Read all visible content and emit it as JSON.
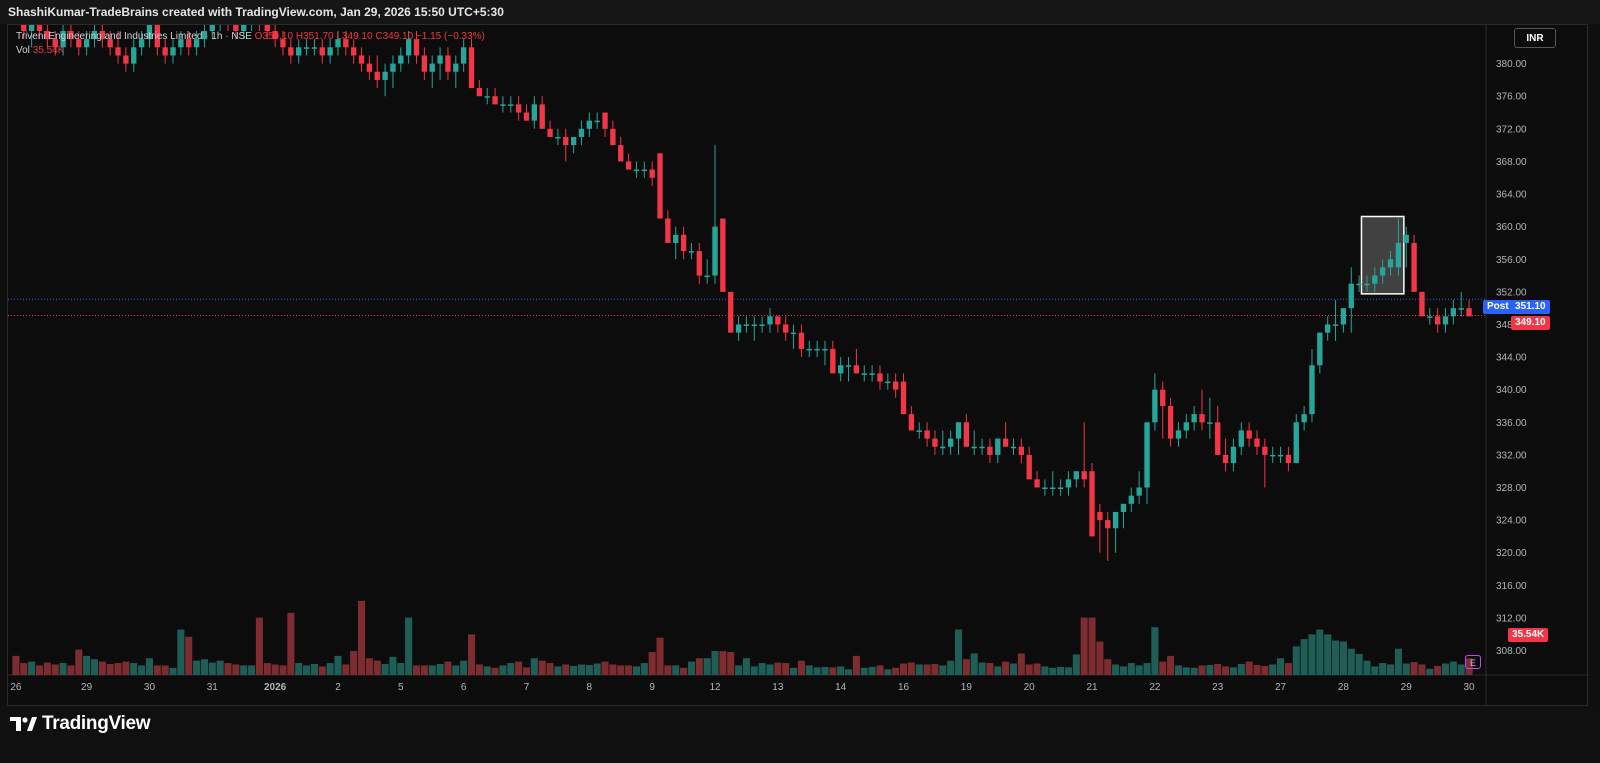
{
  "header": {
    "attribution": "ShashiKumar-TradeBrains created with TradingView.com, Jan 29, 2026 15:50 UTC+5:30"
  },
  "legend": {
    "symbol": "Triveni Engineering and Industries Limited",
    "interval": "1h",
    "exchange": "NSE",
    "open": "O350.10",
    "high": "H351.70",
    "low": "L349.10",
    "close": "C349.10",
    "change": "−1.15 (−0.33%)",
    "vol_label": "Vol",
    "vol_value": "35.54K"
  },
  "currency": "INR",
  "price_labels": {
    "post_tag": "Post",
    "post_price": "351.10",
    "last_price": "349.10",
    "volume": "35.54K"
  },
  "event_badge": "E",
  "branding": "TradingView",
  "colors": {
    "up": "#26a69a",
    "down": "#f23645",
    "up_volume": "#1f5e57",
    "down_volume": "#7d2d2f",
    "post_line": "#2962ff",
    "last_line": "#f23645",
    "highlight_box": "#ffffff"
  },
  "chart_data": {
    "type": "candlestick",
    "ylim": [
      305,
      384
    ],
    "y_ticks": [
      308,
      312,
      316,
      320,
      324,
      328,
      332,
      336,
      340,
      344,
      348,
      352,
      356,
      360,
      364,
      368,
      372,
      376,
      380
    ],
    "y_tick_labels": [
      "308.00",
      "312.00",
      "316.00",
      "320.00",
      "324.00",
      "328.00",
      "332.00",
      "336.00",
      "340.00",
      "344.00",
      "348.00",
      "352.00",
      "356.00",
      "360.00",
      "364.00",
      "368.00",
      "372.00",
      "376.00",
      "380.00"
    ],
    "x_labels": [
      "26",
      "29",
      "30",
      "31",
      "2026",
      "2",
      "5",
      "6",
      "7",
      "8",
      "9",
      "12",
      "13",
      "14",
      "16",
      "19",
      "20",
      "21",
      "22",
      "23",
      "27",
      "28",
      "29",
      "30"
    ],
    "x_label_bar_index": [
      0,
      9,
      17,
      25,
      33,
      41,
      49,
      57,
      65,
      73,
      81,
      89,
      97,
      105,
      113,
      121,
      129,
      137,
      145,
      153,
      161,
      169,
      177,
      185
    ],
    "post_price": 351.1,
    "last_price": 349.1,
    "volume_max": 35.54,
    "highlight_bars": [
      172,
      176
    ],
    "candles": [
      [
        388,
        389,
        385,
        386,
        4
      ],
      [
        386,
        387,
        383,
        384,
        2.5
      ],
      [
        384,
        386,
        382,
        385,
        2.8
      ],
      [
        385,
        386,
        383,
        384,
        2
      ],
      [
        384,
        386,
        382,
        383,
        2.6
      ],
      [
        383,
        384,
        381,
        382,
        2.2
      ],
      [
        382,
        385,
        381,
        384,
        2.5
      ],
      [
        384,
        386,
        382,
        383,
        2
      ],
      [
        383,
        384,
        381,
        382,
        5.3
      ],
      [
        382,
        384,
        381,
        383,
        4
      ],
      [
        383,
        385,
        382,
        384,
        3.3
      ],
      [
        384,
        385,
        382,
        383,
        2.8
      ],
      [
        383,
        384,
        381,
        382,
        2.3
      ],
      [
        382,
        384,
        380,
        381,
        2.5
      ],
      [
        381,
        382,
        379,
        380,
        2.8
      ],
      [
        380,
        383,
        379,
        382,
        2.5
      ],
      [
        382,
        384,
        381,
        383,
        2
      ],
      [
        383,
        386,
        382,
        385,
        3.5
      ],
      [
        385,
        386,
        381,
        382,
        2
      ],
      [
        382,
        383,
        380,
        381,
        2
      ],
      [
        381,
        383,
        380,
        382,
        1.5
      ],
      [
        382,
        384,
        381,
        383,
        9.5
      ],
      [
        383,
        384,
        381,
        382,
        8
      ],
      [
        382,
        384,
        381,
        383,
        3
      ],
      [
        383,
        385,
        382,
        384,
        3.3
      ],
      [
        384,
        386,
        383,
        385,
        2.6
      ],
      [
        385,
        387,
        384,
        386,
        3
      ],
      [
        386,
        388,
        384,
        385,
        2.5
      ],
      [
        385,
        386,
        383,
        384,
        2.2
      ],
      [
        384,
        386,
        383,
        385,
        2
      ],
      [
        385,
        387,
        384,
        386,
        2
      ],
      [
        386,
        388,
        384,
        385,
        12
      ],
      [
        385,
        386,
        383,
        384,
        2.5
      ],
      [
        384,
        385,
        382,
        383,
        2.2
      ],
      [
        383,
        384,
        381,
        382,
        2
      ],
      [
        382,
        383,
        380,
        381,
        13
      ],
      [
        381,
        383,
        380,
        382,
        2.5
      ],
      [
        382,
        383,
        381,
        382,
        2
      ],
      [
        382,
        383,
        381,
        382,
        2.3
      ],
      [
        382,
        383,
        380,
        381,
        1.8
      ],
      [
        381,
        383,
        380,
        382,
        2.5
      ],
      [
        382,
        384,
        381,
        383,
        4
      ],
      [
        383,
        384,
        381,
        382,
        2.2
      ],
      [
        382,
        383,
        380,
        381,
        5
      ],
      [
        381,
        382,
        379,
        380,
        15.5
      ],
      [
        380,
        381,
        378,
        379,
        3.5
      ],
      [
        379,
        381,
        377,
        378,
        3
      ],
      [
        378,
        380,
        376,
        379,
        2.3
      ],
      [
        379,
        381,
        377,
        380,
        3.8
      ],
      [
        380,
        382,
        379,
        381,
        2.5
      ],
      [
        381,
        384,
        380,
        383,
        12
      ],
      [
        383,
        384,
        380,
        381,
        2
      ],
      [
        381,
        382,
        378,
        379,
        2
      ],
      [
        379,
        381,
        377,
        380,
        2
      ],
      [
        380,
        382,
        378,
        381,
        2.3
      ],
      [
        381,
        382,
        378,
        379,
        2.8
      ],
      [
        379,
        381,
        377,
        380,
        2
      ],
      [
        380,
        383,
        379,
        382,
        3
      ],
      [
        382,
        383,
        377,
        377,
        8.5
      ],
      [
        377,
        378,
        376,
        376,
        2.2
      ],
      [
        376,
        377,
        375,
        376,
        1.8
      ],
      [
        376,
        377,
        375,
        375,
        1.5
      ],
      [
        375,
        376,
        374,
        375,
        2
      ],
      [
        375,
        376,
        374,
        375,
        2.5
      ],
      [
        375,
        376,
        373,
        374,
        2.8
      ],
      [
        374,
        375,
        373,
        373,
        1.6
      ],
      [
        373,
        376,
        372,
        375,
        3.5
      ],
      [
        375,
        376,
        372,
        372,
        3
      ],
      [
        372,
        373,
        371,
        371,
        2.5
      ],
      [
        371,
        372,
        370,
        371,
        1.8
      ],
      [
        371,
        372,
        368,
        370,
        2.2
      ],
      [
        370,
        371,
        369,
        371,
        1.9
      ],
      [
        371,
        373,
        370,
        372,
        2.2
      ],
      [
        372,
        374,
        371,
        373,
        2.1
      ],
      [
        373,
        374,
        372,
        373,
        2.4
      ],
      [
        374,
        374,
        371,
        372,
        2.8
      ],
      [
        372,
        373,
        370,
        370,
        2.2
      ],
      [
        370,
        371,
        368,
        368,
        2
      ],
      [
        368,
        369,
        367,
        367,
        2
      ],
      [
        367,
        368,
        366,
        367,
        1.8
      ],
      [
        367,
        368,
        366,
        367,
        2.5
      ],
      [
        367,
        368,
        365,
        366,
        4.8
      ],
      [
        369,
        369,
        361,
        361,
        7.8
      ],
      [
        361,
        362,
        358,
        358,
        2
      ],
      [
        358,
        360,
        356,
        359,
        2
      ],
      [
        359,
        360,
        356,
        357,
        1.5
      ],
      [
        357,
        358,
        356,
        357,
        2.8
      ],
      [
        357,
        358,
        353,
        354,
        3.5
      ],
      [
        354,
        356,
        353,
        354,
        3.5
      ],
      [
        354,
        370,
        353,
        360,
        5
      ],
      [
        361,
        361,
        352,
        352,
        5
      ],
      [
        352,
        352,
        347,
        347,
        4.8
      ],
      [
        347,
        349,
        346,
        348,
        2
      ],
      [
        348,
        349,
        347,
        348,
        3.5
      ],
      [
        348,
        349,
        346,
        348,
        1.8
      ],
      [
        348,
        349,
        347,
        348,
        2.5
      ],
      [
        348,
        350,
        347,
        349,
        2.2
      ],
      [
        349,
        349,
        347,
        348,
        2.6
      ],
      [
        348,
        349,
        346,
        347,
        2.5
      ],
      [
        347,
        348,
        345,
        347,
        1.5
      ],
      [
        347,
        348,
        344,
        345,
        3
      ],
      [
        345,
        346,
        344,
        345,
        2
      ],
      [
        345,
        346,
        344,
        345,
        1.6
      ],
      [
        345,
        346,
        343,
        345,
        1.7
      ],
      [
        345,
        346,
        342,
        342,
        1.6
      ],
      [
        342,
        344,
        341,
        343,
        1.8
      ],
      [
        343,
        344,
        341,
        343,
        1.2
      ],
      [
        343,
        345,
        342,
        342,
        4
      ],
      [
        342,
        343,
        341,
        342,
        1.5
      ],
      [
        342,
        343,
        341,
        342,
        1.7
      ],
      [
        342,
        343,
        340,
        341,
        2
      ],
      [
        341,
        342,
        340,
        341,
        1.2
      ],
      [
        341,
        342,
        339,
        340,
        1.5
      ],
      [
        341,
        342,
        337,
        337,
        2.4
      ],
      [
        337,
        338,
        335,
        335,
        2.6
      ],
      [
        335,
        336,
        334,
        335,
        2.2
      ],
      [
        335,
        336,
        333,
        334,
        2.2
      ],
      [
        334,
        335,
        332,
        333,
        2.3
      ],
      [
        333,
        335,
        332,
        333,
        2
      ],
      [
        333,
        335,
        332,
        334,
        3
      ],
      [
        334,
        336,
        332,
        336,
        9.5
      ],
      [
        336,
        337,
        333,
        333,
        3.3
      ],
      [
        333,
        335,
        332,
        333,
        4.5
      ],
      [
        333,
        334,
        332,
        333,
        2.6
      ],
      [
        333,
        334,
        331,
        332,
        2.5
      ],
      [
        332,
        334,
        331,
        334,
        1.8
      ],
      [
        334,
        336,
        333,
        333,
        2.8
      ],
      [
        333,
        334,
        332,
        333,
        2.4
      ],
      [
        333,
        334,
        331,
        332,
        4.5
      ],
      [
        332,
        333,
        329,
        329,
        2.2
      ],
      [
        329,
        330,
        328,
        328,
        2.4
      ],
      [
        328,
        329,
        327,
        328,
        1.8
      ],
      [
        328,
        330,
        327,
        328,
        1.5
      ],
      [
        328,
        329,
        327,
        328,
        1.7
      ],
      [
        328,
        330,
        327,
        329,
        1.6
      ],
      [
        329,
        330,
        328,
        330,
        4.3
      ],
      [
        330,
        336,
        328,
        329,
        12
      ],
      [
        330,
        331,
        322,
        322,
        12
      ],
      [
        325,
        326,
        320,
        324,
        7
      ],
      [
        324,
        325,
        319,
        323,
        3.3
      ],
      [
        323,
        325,
        320,
        325,
        2.2
      ],
      [
        325,
        326,
        323,
        326,
        1.8
      ],
      [
        326,
        328,
        325,
        327,
        2.5
      ],
      [
        327,
        330,
        326,
        328,
        2
      ],
      [
        328,
        336,
        326,
        336,
        2.5
      ],
      [
        336,
        342,
        335,
        340,
        10
      ],
      [
        340,
        341,
        334,
        338,
        2.8
      ],
      [
        338,
        339,
        333,
        334,
        4
      ],
      [
        334,
        336,
        333,
        335,
        2
      ],
      [
        335,
        337,
        334,
        336,
        1.6
      ],
      [
        336,
        338,
        335,
        337,
        1.5
      ],
      [
        337,
        340,
        335,
        336,
        2
      ],
      [
        336,
        339,
        334,
        336,
        2.1
      ],
      [
        336,
        338,
        332,
        332,
        2.3
      ],
      [
        332,
        334,
        330,
        331,
        1.8
      ],
      [
        331,
        334,
        330,
        333,
        1.6
      ],
      [
        333,
        336,
        332,
        335,
        2.3
      ],
      [
        335,
        336,
        333,
        334,
        2.8
      ],
      [
        334,
        335,
        332,
        333,
        2.1
      ],
      [
        333,
        334,
        328,
        332,
        1.9
      ],
      [
        332,
        333,
        331,
        332,
        2.2
      ],
      [
        332,
        333,
        331,
        332,
        3.5
      ],
      [
        332,
        333,
        330,
        331,
        2.5
      ],
      [
        331,
        337,
        331,
        336,
        6
      ],
      [
        336,
        338,
        335,
        337,
        7.5
      ],
      [
        337,
        345,
        336,
        343,
        8.5
      ],
      [
        343,
        347,
        342,
        347,
        9.5
      ],
      [
        347,
        349,
        346,
        348,
        8.5
      ],
      [
        348,
        351,
        346,
        348,
        7.2
      ],
      [
        348,
        350,
        347,
        350,
        7
      ],
      [
        350,
        355,
        347,
        353,
        5.5
      ],
      [
        353,
        354,
        352,
        353,
        4.4
      ],
      [
        353,
        354,
        352,
        353,
        3
      ],
      [
        353,
        355,
        352,
        354,
        1.8
      ],
      [
        354,
        356,
        353,
        355,
        2.5
      ],
      [
        355,
        357,
        354,
        356,
        2.2
      ],
      [
        355,
        361,
        354,
        358,
        5.5
      ],
      [
        358,
        360,
        355,
        359,
        2.4
      ],
      [
        358,
        359,
        352,
        352,
        2.7
      ],
      [
        352,
        352,
        349,
        349,
        2.2
      ],
      [
        349,
        350,
        348,
        349,
        1.3
      ],
      [
        349,
        350,
        347,
        348,
        1.9
      ],
      [
        348,
        350,
        347,
        349,
        2.4
      ],
      [
        349,
        351,
        348,
        350,
        2.8
      ],
      [
        350,
        352,
        349,
        350,
        2.2
      ],
      [
        350,
        351,
        349,
        349,
        3.5
      ]
    ]
  }
}
